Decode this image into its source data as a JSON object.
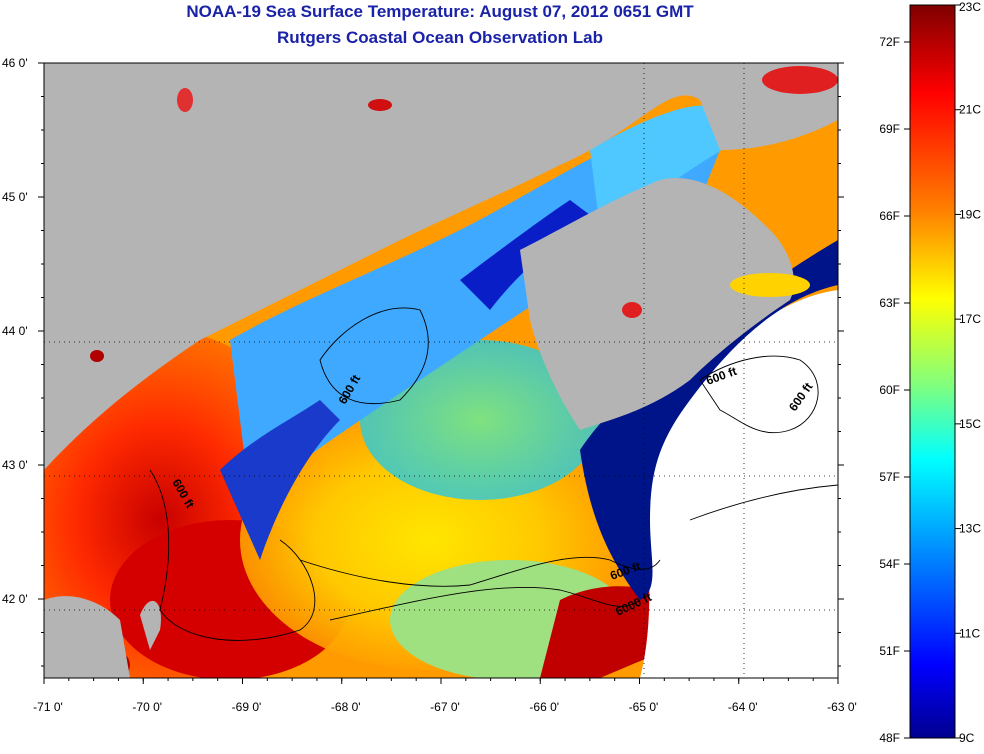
{
  "header": {
    "title": "NOAA-19 Sea Surface Temperature:  August 07, 2012 0651 GMT",
    "subtitle": "Rutgers Coastal Ocean Observation Lab"
  },
  "map": {
    "lon_ticks": [
      "-71 0'",
      "-70 0'",
      "-69 0'",
      "-68 0'",
      "-67 0'",
      "-66 0'",
      "-65 0'",
      "-64 0'",
      "-63 0'"
    ],
    "lat_ticks": [
      "46 0'",
      "45 0'",
      "44 0'",
      "43 0'",
      "42 0'"
    ],
    "isobath_labels": [
      "600 ft",
      "600 ft",
      "600 ft",
      "600 ft",
      "600 ft",
      "6000 ft"
    ],
    "colors": {
      "land": "#b4b4b4",
      "cloud": "#ffffff",
      "contour": "#000000"
    }
  },
  "colorbar": {
    "fahrenheit_labels": [
      "72F",
      "69F",
      "66F",
      "63F",
      "60F",
      "57F",
      "54F",
      "51F",
      "48F"
    ],
    "celsius_labels": [
      "23C",
      "21C",
      "19C",
      "17C",
      "15C",
      "13C",
      "11C",
      "9C"
    ],
    "range_c": [
      9,
      23
    ],
    "colormap": [
      "#7f0000",
      "#ff0000",
      "#ff7f00",
      "#ffff00",
      "#7fff7f",
      "#00ffff",
      "#007fff",
      "#0000ff",
      "#00008f"
    ]
  }
}
